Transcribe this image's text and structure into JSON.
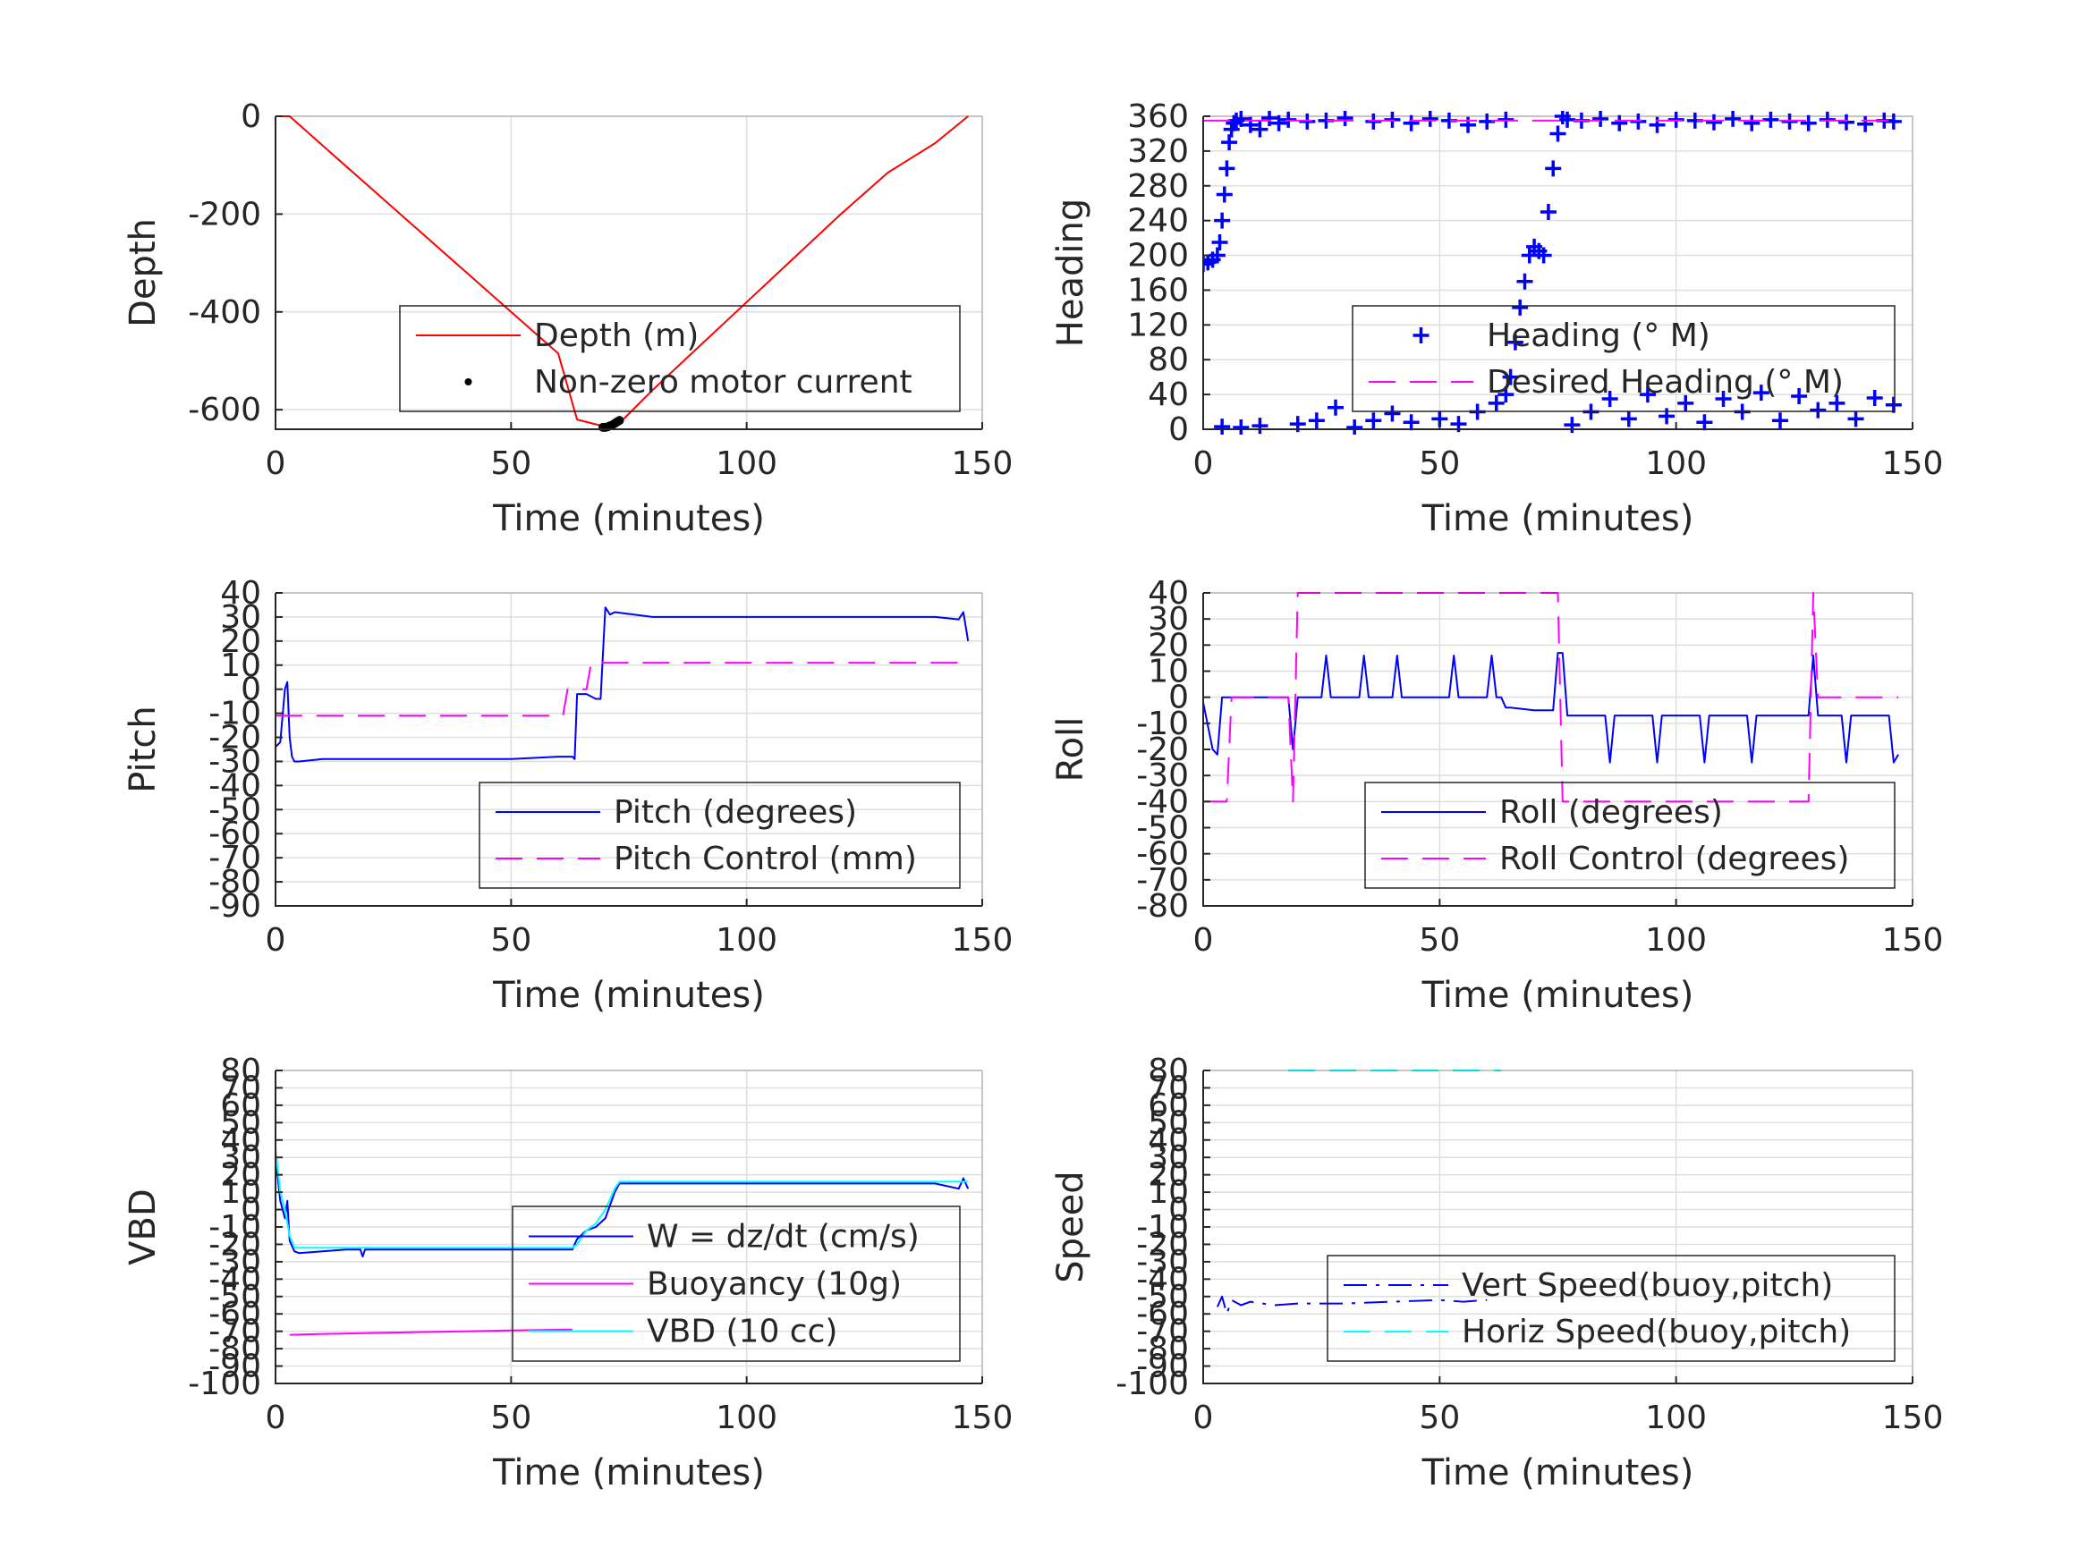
{
  "colors": {
    "blue": "#0000ff",
    "red": "#ff0000",
    "magenta": "#ff00ff",
    "cyan": "#00ffff",
    "black": "#000000",
    "grid": "#dfdfdf",
    "axis": "#262626"
  },
  "chart_data": [
    {
      "type": "line",
      "xlabel": "Time (minutes)",
      "ylabel": "Depth",
      "xlim": [
        0,
        150
      ],
      "ylim": [
        -640,
        0
      ],
      "xticks": [
        "0",
        "50",
        "100",
        "150"
      ],
      "yticks": [
        "0",
        "-200",
        "-400",
        "-600"
      ],
      "ytick_values": [
        0,
        -200,
        -400,
        -600
      ],
      "grid": true,
      "legend_position": "lower-right",
      "series": [
        {
          "name": "Depth (m)",
          "color": "#ff0000",
          "style": "solid",
          "x": [
            0,
            3,
            10,
            20,
            30,
            40,
            50,
            60,
            64,
            68,
            70,
            72,
            74,
            80,
            90,
            100,
            110,
            120,
            130,
            140,
            147
          ],
          "y": [
            0,
            0,
            -60,
            -145,
            -230,
            -315,
            -400,
            -485,
            -620,
            -630,
            -635,
            -630,
            -618,
            -560,
            -470,
            -380,
            -290,
            -200,
            -115,
            -55,
            0
          ]
        },
        {
          "name": "Non-zero motor current",
          "color": "#000000",
          "style": "dots",
          "x": [
            69.5,
            70,
            70.5,
            71,
            71.5,
            72,
            72.5,
            73
          ],
          "y": [
            -636,
            -636,
            -635,
            -633,
            -631,
            -628,
            -625,
            -622
          ]
        }
      ]
    },
    {
      "type": "scatter",
      "xlabel": "Time (minutes)",
      "ylabel": "Heading",
      "xlim": [
        0,
        150
      ],
      "ylim": [
        0,
        360
      ],
      "xticks": [
        "0",
        "50",
        "100",
        "150"
      ],
      "yticks": [
        "360",
        "320",
        "280",
        "240",
        "200",
        "160",
        "120",
        "80",
        "40",
        "0"
      ],
      "ytick_values": [
        360,
        320,
        280,
        240,
        200,
        160,
        120,
        80,
        40,
        0
      ],
      "grid": true,
      "legend_position": "lower-right",
      "series": [
        {
          "name": "Heading (° M)",
          "color": "#0000ff",
          "style": "plus",
          "x": [
            0,
            1,
            2,
            3,
            3.5,
            4,
            4.5,
            5,
            5.5,
            6,
            6.5,
            7,
            8,
            10,
            12,
            14,
            16,
            18,
            22,
            26,
            30,
            36,
            40,
            44,
            48,
            52,
            56,
            60,
            64,
            4,
            8,
            12,
            20,
            24,
            28,
            32,
            36,
            40,
            44,
            50,
            54,
            58,
            62,
            64,
            65,
            66,
            67,
            68,
            69,
            70,
            71,
            72,
            73,
            74,
            75,
            76,
            77,
            80,
            84,
            88,
            92,
            96,
            100,
            104,
            108,
            112,
            116,
            120,
            124,
            128,
            132,
            136,
            140,
            144,
            146,
            78,
            82,
            86,
            90,
            94,
            98,
            102,
            106,
            110,
            114,
            118,
            122,
            126,
            130,
            134,
            138,
            142,
            146
          ],
          "y": [
            190,
            192,
            195,
            200,
            215,
            240,
            270,
            300,
            330,
            345,
            352,
            355,
            357,
            350,
            345,
            358,
            352,
            356,
            354,
            355,
            358,
            354,
            356,
            352,
            357,
            355,
            350,
            354,
            356,
            3,
            2,
            4,
            6,
            10,
            25,
            2,
            10,
            18,
            8,
            12,
            6,
            20,
            30,
            40,
            60,
            100,
            140,
            170,
            200,
            210,
            205,
            200,
            250,
            300,
            340,
            360,
            356,
            355,
            357,
            352,
            354,
            350,
            356,
            355,
            353,
            357,
            352,
            356,
            354,
            352,
            356,
            353,
            351,
            355,
            354,
            5,
            20,
            35,
            12,
            40,
            15,
            30,
            8,
            35,
            20,
            42,
            10,
            38,
            22,
            30,
            12,
            36,
            28
          ]
        },
        {
          "name": "Desired Heading (° M)",
          "color": "#ff00ff",
          "style": "dashed",
          "x": [
            0,
            147
          ],
          "y": [
            355,
            355
          ]
        }
      ]
    },
    {
      "type": "line",
      "xlabel": "Time (minutes)",
      "ylabel": "Pitch",
      "xlim": [
        0,
        150
      ],
      "ylim": [
        -90,
        40
      ],
      "xticks": [
        "0",
        "50",
        "100",
        "150"
      ],
      "yticks": [
        "40",
        "30",
        "20",
        "10",
        "0",
        "-10",
        "-20",
        "-30",
        "-40",
        "-50",
        "-60",
        "-70",
        "-80",
        "-90"
      ],
      "ytick_values": [
        40,
        30,
        20,
        10,
        0,
        -10,
        -20,
        -30,
        -40,
        -50,
        -60,
        -70,
        -80,
        -90
      ],
      "grid": true,
      "legend_position": "lower-right",
      "series": [
        {
          "name": "Pitch (degrees)",
          "color": "#0000ff",
          "style": "solid",
          "x": [
            0,
            1,
            2,
            2.5,
            3,
            3.5,
            4,
            5,
            10,
            20,
            30,
            40,
            50,
            60,
            63,
            63.5,
            64,
            66,
            68,
            69,
            70,
            71,
            72,
            80,
            90,
            100,
            110,
            120,
            130,
            140,
            145,
            146,
            147
          ],
          "y": [
            -24,
            -22,
            0,
            3,
            -20,
            -28,
            -30,
            -30,
            -29,
            -29,
            -29,
            -29,
            -29,
            -28,
            -28,
            -29,
            -2,
            -2,
            -4,
            -4,
            34,
            31,
            32,
            30,
            30,
            30,
            30,
            30,
            30,
            30,
            29,
            32,
            20
          ]
        },
        {
          "name": "Pitch Control (mm)",
          "color": "#ff00ff",
          "style": "dashed",
          "x": [
            0,
            61,
            62,
            66,
            67,
            147
          ],
          "y": [
            -11,
            -11,
            0,
            0,
            11,
            11
          ]
        }
      ]
    },
    {
      "type": "line",
      "xlabel": "Time (minutes)",
      "ylabel": "Roll",
      "xlim": [
        0,
        150
      ],
      "ylim": [
        -80,
        40
      ],
      "xticks": [
        "0",
        "50",
        "100",
        "150"
      ],
      "yticks": [
        "40",
        "30",
        "20",
        "10",
        "0",
        "-10",
        "-20",
        "-30",
        "-40",
        "-50",
        "-60",
        "-70",
        "-80"
      ],
      "ytick_values": [
        40,
        30,
        20,
        10,
        0,
        -10,
        -20,
        -30,
        -40,
        -50,
        -60,
        -70,
        -80
      ],
      "grid": true,
      "legend_position": "lower-right",
      "series": [
        {
          "name": "Roll (degrees)",
          "color": "#0000ff",
          "style": "solid",
          "x": [
            0,
            2,
            3,
            4,
            5,
            6,
            10,
            15,
            18,
            19,
            20,
            25,
            26,
            27,
            28,
            30,
            33,
            34,
            35,
            40,
            41,
            42,
            50,
            52,
            53,
            54,
            60,
            61,
            62,
            63,
            64,
            65,
            70,
            74,
            75,
            76,
            77,
            78,
            80,
            85,
            86,
            87,
            90,
            95,
            96,
            97,
            100,
            105,
            106,
            107,
            110,
            115,
            116,
            117,
            120,
            125,
            128,
            129,
            130,
            135,
            136,
            137,
            140,
            145,
            146,
            147
          ],
          "y": [
            -2,
            -20,
            -22,
            0,
            0,
            0,
            0,
            0,
            0,
            -20,
            0,
            0,
            16,
            0,
            0,
            0,
            0,
            16,
            0,
            0,
            16,
            0,
            0,
            0,
            16,
            0,
            0,
            16,
            0,
            0,
            -4,
            -4,
            -5,
            -5,
            17,
            17,
            -7,
            -7,
            -7,
            -7,
            -25,
            -7,
            -7,
            -7,
            -25,
            -7,
            -7,
            -7,
            -25,
            -7,
            -7,
            -7,
            -25,
            -7,
            -7,
            -7,
            -7,
            16,
            -7,
            -7,
            -25,
            -7,
            -7,
            -7,
            -25,
            -22
          ]
        },
        {
          "name": "Roll Control (degrees)",
          "color": "#ff00ff",
          "style": "dashed",
          "x": [
            0,
            5,
            6,
            18,
            19,
            20,
            25,
            30,
            35,
            40,
            45,
            50,
            55,
            60,
            65,
            70,
            75,
            76,
            80,
            90,
            100,
            110,
            120,
            128,
            129,
            130,
            140,
            147
          ],
          "y": [
            -40,
            -40,
            0,
            0,
            -40,
            40,
            40,
            40,
            40,
            40,
            40,
            40,
            40,
            40,
            40,
            40,
            40,
            -40,
            -40,
            -40,
            -40,
            -40,
            -40,
            -40,
            40,
            0,
            0,
            0
          ]
        }
      ]
    },
    {
      "type": "line",
      "xlabel": "Time (minutes)",
      "ylabel": "VBD",
      "xlim": [
        0,
        150
      ],
      "ylim": [
        -100,
        80
      ],
      "xticks": [
        "0",
        "50",
        "100",
        "150"
      ],
      "yticks": [
        "80",
        "70",
        "60",
        "50",
        "40",
        "30",
        "20",
        "10",
        "0",
        "-10",
        "-20",
        "-30",
        "-40",
        "-50",
        "-60",
        "-70",
        "-80",
        "-90",
        "-100"
      ],
      "ytick_values": [
        80,
        70,
        60,
        50,
        40,
        30,
        20,
        10,
        0,
        -10,
        -20,
        -30,
        -40,
        -50,
        -60,
        -70,
        -80,
        -90,
        -100
      ],
      "grid": true,
      "legend_position": "lower-right",
      "series": [
        {
          "name": "W = dz/dt (cm/s)",
          "color": "#0000ff",
          "style": "solid",
          "x": [
            0,
            1,
            2,
            2.5,
            3,
            4,
            5,
            10,
            15,
            18,
            18.5,
            19,
            20,
            30,
            40,
            50,
            60,
            62,
            63,
            64,
            66,
            68,
            70,
            72,
            73,
            80,
            90,
            100,
            110,
            120,
            130,
            140,
            145,
            146,
            147
          ],
          "y": [
            30,
            5,
            -5,
            5,
            -18,
            -24,
            -25,
            -24,
            -23,
            -23,
            -27,
            -23,
            -23,
            -23,
            -23,
            -23,
            -23,
            -23,
            -23,
            -17,
            -12,
            -10,
            -5,
            10,
            15,
            15,
            15,
            15,
            15,
            15,
            15,
            15,
            12,
            18,
            12
          ]
        },
        {
          "name": "Buoyancy (10g)",
          "color": "#ff00ff",
          "style": "solid",
          "x": [
            3,
            10,
            20,
            30,
            40,
            50,
            63
          ],
          "y": [
            -72,
            -71.5,
            -71,
            -70.5,
            -70,
            -69.5,
            -69
          ]
        },
        {
          "name": "VBD (10 cc)",
          "color": "#00ffff",
          "style": "solid",
          "x": [
            0,
            1,
            2,
            3,
            4,
            5,
            10,
            20,
            30,
            40,
            50,
            60,
            63,
            64,
            66,
            68,
            70,
            72,
            73,
            80,
            90,
            100,
            110,
            120,
            130,
            140,
            147
          ],
          "y": [
            35,
            10,
            0,
            -15,
            -22,
            -22,
            -22,
            -22,
            -22,
            -22,
            -22,
            -22,
            -22,
            -20,
            -12,
            -8,
            0,
            12,
            16,
            16,
            16,
            16,
            16,
            16,
            16,
            16,
            16
          ]
        }
      ]
    },
    {
      "type": "line",
      "xlabel": "Time (minutes)",
      "ylabel": "Speed",
      "xlim": [
        0,
        150
      ],
      "ylim": [
        -100,
        80
      ],
      "xticks": [
        "0",
        "50",
        "100",
        "150"
      ],
      "yticks": [
        "80",
        "70",
        "60",
        "50",
        "40",
        "30",
        "20",
        "10",
        "0",
        "-10",
        "-20",
        "-30",
        "-40",
        "-50",
        "-60",
        "-70",
        "-80",
        "-90",
        "-100"
      ],
      "ytick_values": [
        80,
        70,
        60,
        50,
        40,
        30,
        20,
        10,
        0,
        -10,
        -20,
        -30,
        -40,
        -50,
        -60,
        -70,
        -80,
        -90,
        -100
      ],
      "grid": true,
      "legend_position": "lower-right",
      "series": [
        {
          "name": "Vert Speed(buoy,pitch)",
          "color": "#0000ff",
          "style": "dashdot",
          "x": [
            3,
            4,
            5,
            6,
            8,
            10,
            15,
            20,
            30,
            40,
            50,
            55,
            60
          ],
          "y": [
            -56,
            -50,
            -60,
            -52,
            -55,
            -53,
            -55,
            -54,
            -54,
            -53,
            -52,
            -53,
            -52
          ]
        },
        {
          "name": "Horiz Speed(buoy,pitch)",
          "color": "#00ffff",
          "style": "dashed",
          "x": [
            18,
            19,
            62,
            63
          ],
          "y": [
            80,
            80,
            80,
            80
          ]
        }
      ]
    }
  ]
}
